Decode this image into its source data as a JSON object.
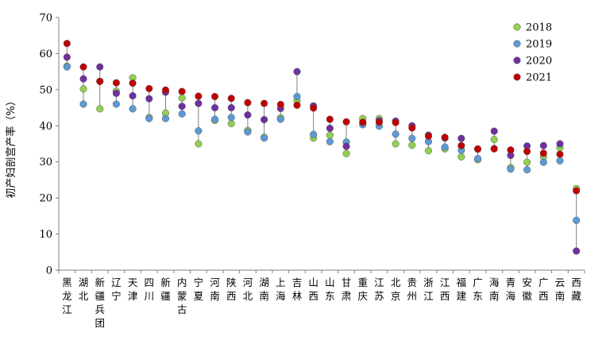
{
  "chart_data": {
    "type": "scatter",
    "ylabel": "初产妇剖宫产率（%）",
    "ylim": [
      0,
      70
    ],
    "yticks": [
      "0",
      "10",
      "20",
      "30",
      "40",
      "50",
      "60",
      "70"
    ],
    "grid": false,
    "legend_position": "top-right",
    "categories": [
      "黑龙江",
      "湖北",
      "新疆兵团",
      "辽宁",
      "天津",
      "四川",
      "新疆",
      "内蒙古",
      "宁夏",
      "河南",
      "陕西",
      "河北",
      "湖南",
      "上海",
      "吉林",
      "山西",
      "山东",
      "甘肃",
      "重庆",
      "江苏",
      "北京",
      "贵州",
      "浙江",
      "江西",
      "福建",
      "广东",
      "海南",
      "青海",
      "安徽",
      "广西",
      "云南",
      "西藏"
    ],
    "series": [
      {
        "name": "2018",
        "color": "#92D050",
        "values": [
          56.5,
          50.2,
          44.7,
          49.6,
          53.3,
          42.3,
          43.5,
          47.7,
          35.0,
          41.5,
          40.6,
          38.7,
          36.8,
          42.2,
          46.9,
          36.6,
          37.4,
          32.3,
          42.0,
          42.0,
          35.0,
          34.6,
          33.1,
          33.6,
          31.4,
          30.6,
          36.2,
          28.4,
          29.9,
          31.4,
          33.9,
          22.6
        ]
      },
      {
        "name": "2019",
        "color": "#5B9BD5",
        "values": [
          56.3,
          46.0,
          52.3,
          46.0,
          44.7,
          42.0,
          42.0,
          43.3,
          38.6,
          41.8,
          42.3,
          38.3,
          36.6,
          41.8,
          48.1,
          37.6,
          35.6,
          35.5,
          40.3,
          39.9,
          37.7,
          36.5,
          35.6,
          34.1,
          33.2,
          30.9,
          33.7,
          28.0,
          27.8,
          29.9,
          30.3,
          13.8
        ]
      },
      {
        "name": "2020",
        "color": "#7030A0",
        "values": [
          59.0,
          53.0,
          56.3,
          49.0,
          48.3,
          47.5,
          49.3,
          45.4,
          46.2,
          45.0,
          45.0,
          43.0,
          41.7,
          44.8,
          55.0,
          45.5,
          39.3,
          34.3,
          40.9,
          41.4,
          41.3,
          40.0,
          37.4,
          36.6,
          36.5,
          33.5,
          38.5,
          31.8,
          34.4,
          34.5,
          35.0,
          5.3
        ]
      },
      {
        "name": "2021",
        "color": "#C00000",
        "values": [
          62.8,
          56.3,
          52.3,
          51.9,
          51.8,
          50.3,
          49.9,
          49.5,
          48.2,
          48.1,
          47.6,
          46.4,
          46.2,
          45.9,
          45.7,
          44.9,
          41.8,
          41.1,
          41.0,
          41.0,
          40.9,
          39.4,
          37.1,
          36.8,
          34.5,
          33.6,
          33.6,
          33.3,
          32.9,
          32.4,
          32.1,
          22.0
        ]
      }
    ]
  }
}
